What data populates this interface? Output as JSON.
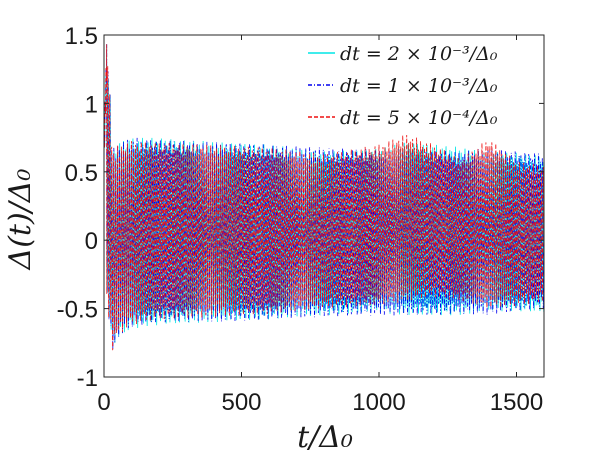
{
  "chart_data": {
    "type": "line",
    "title": "",
    "xlabel": "t/Δ₀",
    "ylabel": "Δ(t)/Δ₀",
    "xlim": [
      0,
      1600
    ],
    "ylim": [
      -1,
      1.5
    ],
    "x_ticks": [
      0,
      500,
      1000,
      1500
    ],
    "x_tick_labels": [
      "0",
      "500",
      "1000",
      "1500"
    ],
    "y_ticks": [
      -1,
      -0.5,
      0,
      0.5,
      1,
      1.5
    ],
    "y_tick_labels": [
      "-1",
      "-0.5",
      "0",
      "0.5",
      "1",
      "1.5"
    ],
    "grid": false,
    "legend_position": "top-right",
    "series": [
      {
        "name": "dt = 2 × 10⁻³/Δ₀",
        "color": "#00e5e5",
        "style": "solid",
        "envelope": {
          "t": [
            0,
            10,
            20,
            30,
            50,
            100,
            200,
            400,
            600,
            800,
            1000,
            1100,
            1200,
            1300,
            1400,
            1500,
            1600
          ],
          "upper": [
            0.6,
            1.38,
            1.2,
            0.65,
            0.72,
            0.75,
            0.75,
            0.72,
            0.7,
            0.65,
            0.67,
            0.72,
            0.7,
            0.68,
            0.65,
            0.64,
            0.62
          ],
          "lower": [
            0.6,
            -0.5,
            -0.6,
            -0.8,
            -0.72,
            -0.65,
            -0.62,
            -0.6,
            -0.58,
            -0.55,
            -0.53,
            -0.55,
            -0.55,
            -0.55,
            -0.52,
            -0.52,
            -0.53
          ]
        }
      },
      {
        "name": "dt = 1 × 10⁻³/Δ₀",
        "color": "#0000ee",
        "style": "dash-dot",
        "envelope": {
          "t": [
            0,
            10,
            20,
            30,
            50,
            100,
            200,
            400,
            600,
            800,
            1000,
            1100,
            1200,
            1300,
            1400,
            1500,
            1600
          ],
          "upper": [
            0.6,
            1.37,
            1.2,
            0.66,
            0.72,
            0.75,
            0.74,
            0.72,
            0.7,
            0.68,
            0.66,
            0.67,
            0.66,
            0.65,
            0.68,
            0.65,
            0.64
          ],
          "lower": [
            0.6,
            -0.5,
            -0.6,
            -0.85,
            -0.72,
            -0.64,
            -0.6,
            -0.6,
            -0.58,
            -0.56,
            -0.55,
            -0.55,
            -0.55,
            -0.54,
            -0.55,
            -0.52,
            -0.5
          ]
        }
      },
      {
        "name": "dt = 5 × 10⁻⁴/Δ₀",
        "color": "#ee1111",
        "style": "dashed",
        "envelope": {
          "t": [
            0,
            10,
            20,
            30,
            50,
            100,
            200,
            400,
            600,
            800,
            1000,
            1100,
            1200,
            1300,
            1400,
            1500,
            1600
          ],
          "upper": [
            0.6,
            1.36,
            1.18,
            0.64,
            0.7,
            0.73,
            0.72,
            0.7,
            0.68,
            0.63,
            0.7,
            0.78,
            0.7,
            0.6,
            0.75,
            0.58,
            0.55
          ],
          "lower": [
            0.6,
            -0.5,
            -0.6,
            -0.82,
            -0.7,
            -0.62,
            -0.58,
            -0.56,
            -0.54,
            -0.5,
            -0.48,
            -0.45,
            -0.42,
            -0.45,
            -0.5,
            -0.48,
            -0.45
          ]
        }
      }
    ]
  }
}
